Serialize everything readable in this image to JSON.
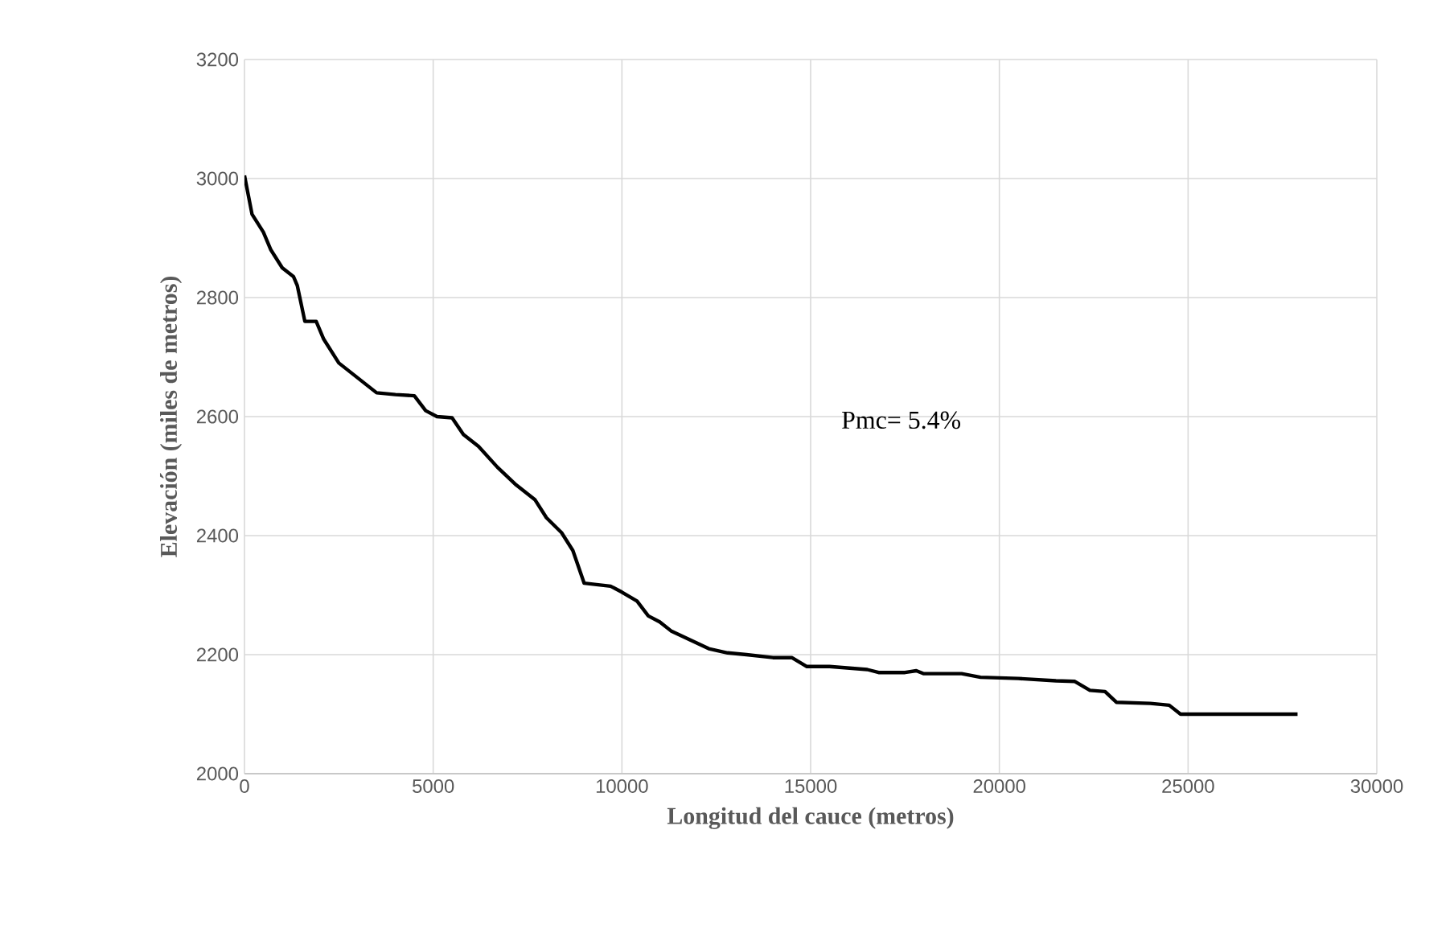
{
  "chart_data": {
    "type": "line",
    "xlabel": "Longitud del cauce (metros)",
    "ylabel": "Elevación (miles de metros)",
    "annotations": [
      "Pmc= 5.4%"
    ],
    "xlim": [
      0,
      30000
    ],
    "xticks": [
      0,
      5000,
      10000,
      15000,
      20000,
      25000,
      30000
    ],
    "ylim": [
      2000,
      3200
    ],
    "yticks": [
      2000,
      2200,
      2400,
      2600,
      2800,
      3000,
      3200
    ],
    "grid": true,
    "marker": "none",
    "line_style": "solid",
    "series": [
      {
        "color": "#000000",
        "x": [
          0,
          200,
          500,
          700,
          1000,
          1300,
          1400,
          1600,
          1900,
          2100,
          2500,
          3000,
          3500,
          4000,
          4500,
          4800,
          5100,
          5500,
          5800,
          6200,
          6700,
          7200,
          7700,
          8000,
          8400,
          8700,
          9000,
          9700,
          10000,
          10400,
          10700,
          11000,
          11300,
          11800,
          12300,
          12800,
          13300,
          14000,
          14500,
          14900,
          15500,
          16500,
          16800,
          17500,
          17800,
          18000,
          19000,
          19500,
          20500,
          21500,
          22000,
          22400,
          22800,
          23100,
          24000,
          24500,
          24800,
          27900
        ],
        "values": [
          3005,
          2940,
          2910,
          2880,
          2850,
          2835,
          2820,
          2760,
          2760,
          2730,
          2690,
          2665,
          2640,
          2637,
          2635,
          2610,
          2600,
          2598,
          2570,
          2550,
          2515,
          2485,
          2460,
          2430,
          2405,
          2375,
          2320,
          2315,
          2305,
          2290,
          2265,
          2255,
          2240,
          2225,
          2210,
          2203,
          2200,
          2195,
          2195,
          2180,
          2180,
          2175,
          2170,
          2170,
          2173,
          2168,
          2168,
          2162,
          2160,
          2156,
          2155,
          2140,
          2138,
          2120,
          2118,
          2115,
          2100,
          2100
        ]
      }
    ]
  }
}
